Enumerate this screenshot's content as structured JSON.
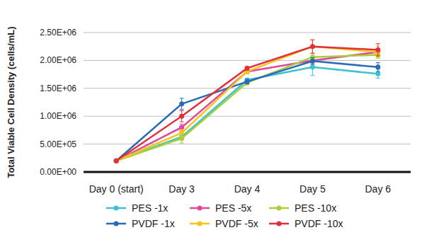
{
  "chart_data": {
    "type": "line",
    "y_label": "Total Viable Cell Density (cells/mL)",
    "categories": [
      "Day 0 (start)",
      "Day 3",
      "Day 4",
      "Day 5",
      "Day 6"
    ],
    "ylim": [
      0,
      2500000
    ],
    "yticks": [
      {
        "value": 0,
        "label": "0.00E+00"
      },
      {
        "value": 500000,
        "label": "5.00E+05"
      },
      {
        "value": 1000000,
        "label": "1.00E+06"
      },
      {
        "value": 1500000,
        "label": "1.50E+06"
      },
      {
        "value": 2000000,
        "label": "2.00E+06"
      },
      {
        "value": 2500000,
        "label": "2.50E+06"
      }
    ],
    "grid": true,
    "legend": "bottom",
    "marker": "circle",
    "series": [
      {
        "name": "PES -1x",
        "color": "#3ec1d3",
        "values": [
          200000,
          630000,
          1650000,
          1880000,
          1760000
        ],
        "errors": [
          10000,
          40000,
          30000,
          150000,
          80000
        ]
      },
      {
        "name": "PES -5x",
        "color": "#e0489b",
        "values": [
          200000,
          800000,
          1800000,
          2000000,
          2150000
        ],
        "errors": [
          10000,
          60000,
          40000,
          60000,
          60000
        ]
      },
      {
        "name": "PES -10x",
        "color": "#a8cf3a",
        "values": [
          200000,
          600000,
          1600000,
          2060000,
          2100000
        ],
        "errors": [
          10000,
          80000,
          40000,
          60000,
          60000
        ]
      },
      {
        "name": "PVDF -1x",
        "color": "#2a6bb5",
        "values": [
          200000,
          1220000,
          1620000,
          1990000,
          1880000
        ],
        "errors": [
          10000,
          100000,
          40000,
          60000,
          80000
        ]
      },
      {
        "name": "PVDF -5x",
        "color": "#f5c518",
        "values": [
          200000,
          700000,
          1800000,
          2250000,
          2150000
        ],
        "errors": [
          10000,
          60000,
          40000,
          120000,
          100000
        ]
      },
      {
        "name": "PVDF -10x",
        "color": "#e0303b",
        "values": [
          200000,
          1000000,
          1860000,
          2250000,
          2190000
        ],
        "errors": [
          10000,
          100000,
          30000,
          120000,
          110000
        ]
      }
    ]
  }
}
